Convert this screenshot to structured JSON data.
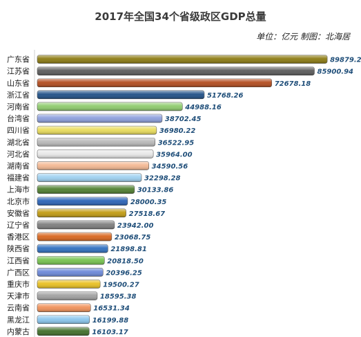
{
  "chart_data": {
    "type": "bar",
    "orientation": "horizontal",
    "title": "2017年全国34个省级政区GDP总量",
    "subtitle": "单位：亿元  制图：北海居",
    "categories": [
      "广东省",
      "江苏省",
      "山东省",
      "浙江省",
      "河南省",
      "台湾省",
      "四川省",
      "湖北省",
      "河北省",
      "湖南省",
      "福建省",
      "上海市",
      "北京市",
      "安徽省",
      "辽宁省",
      "香港区",
      "陕西省",
      "江西省",
      "广西区",
      "重庆市",
      "天津市",
      "云南省",
      "黑龙江",
      "内蒙古"
    ],
    "values": [
      89879.23,
      85900.94,
      72678.18,
      51768.26,
      44988.16,
      38702.45,
      36980.22,
      36522.95,
      35964.0,
      34590.56,
      32298.28,
      30133.86,
      28000.35,
      27518.67,
      23942.0,
      23068.75,
      21898.81,
      20818.5,
      20396.25,
      19500.27,
      18595.38,
      16531.34,
      16199.88,
      16103.17
    ],
    "value_labels": [
      "89879.23",
      "85900.94",
      "72678.18",
      "51768.26",
      "44988.16",
      "38702.45",
      "36980.22",
      "36522.95",
      "35964.00",
      "34590.56",
      "32298.28",
      "30133.86",
      "28000.35",
      "27518.67",
      "23942.00",
      "23068.75",
      "21898.81",
      "20818.50",
      "20396.25",
      "19500.27",
      "18595.38",
      "16531.34",
      "16199.88",
      "16103.17"
    ],
    "colors": [
      "#8b7a10",
      "#5a5a5a",
      "#b24a1c",
      "#1e4f86",
      "#8ecb6c",
      "#8c9fdc",
      "#e9dc5a",
      "#b8b8b8",
      "#e8e8e8",
      "#f4b892",
      "#9dd0f0",
      "#4f7f2f",
      "#2a62b6",
      "#c09a10",
      "#7d7d7d",
      "#d8661e",
      "#2e6fc0",
      "#75c24e",
      "#6b88d8",
      "#e8c020",
      "#a0a0a0",
      "#f09058",
      "#8ac6ee",
      "#3f6e28"
    ],
    "xlim": [
      0,
      92000
    ],
    "grid": false,
    "legend": "none"
  }
}
